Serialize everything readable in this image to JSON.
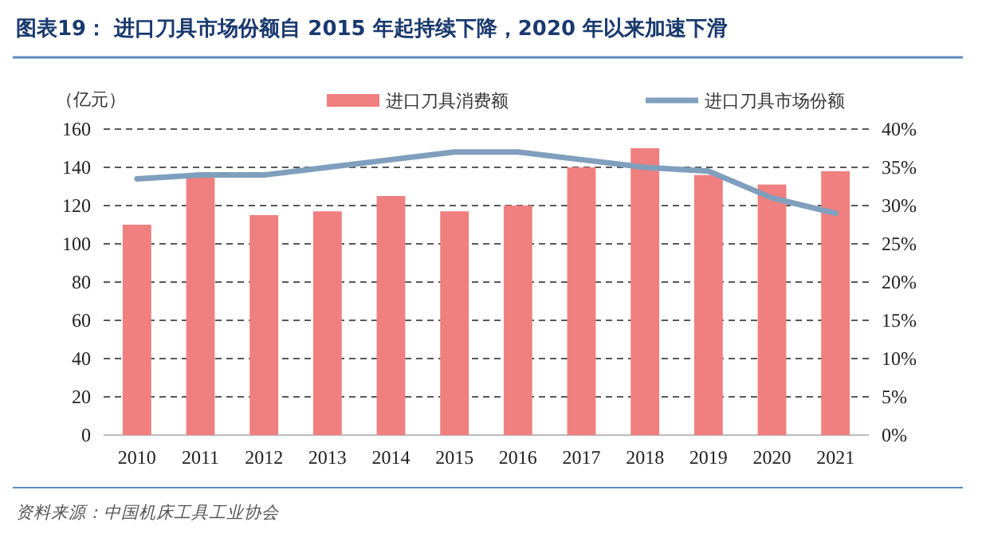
{
  "chart_data": {
    "type": "bar",
    "title": "图表19：  进口刀具市场份额自 2015 年起持续下降，2020 年以来加速下滑",
    "ylabel": "（亿元）",
    "annotations": [
      "资料来源：中国机床工具工业协会"
    ],
    "categories": [
      "2010",
      "2011",
      "2012",
      "2013",
      "2014",
      "2015",
      "2016",
      "2017",
      "2018",
      "2019",
      "2020",
      "2021"
    ],
    "series": [
      {
        "name": "进口刀具消费额",
        "color": "#f07f7f",
        "values": [
          110,
          135,
          115,
          117,
          125,
          117,
          120,
          140,
          150,
          136,
          131,
          138
        ]
      },
      {
        "name": "进口刀具市场份额",
        "type": "line",
        "axis": "y2",
        "color": "#7f9fbd",
        "values": [
          33.5,
          34,
          34,
          35,
          36,
          37,
          37,
          36,
          35,
          34.5,
          31,
          29
        ]
      }
    ],
    "ylim": [
      0,
      160
    ],
    "yticks": [
      0,
      20,
      40,
      60,
      80,
      100,
      120,
      140,
      160
    ],
    "y2lim": [
      0,
      40
    ],
    "y2ticks": [
      {
        "value": 0,
        "label": "0%"
      },
      {
        "value": 5,
        "label": "5%"
      },
      {
        "value": 10,
        "label": "10%"
      },
      {
        "value": 15,
        "label": "15%"
      },
      {
        "value": 20,
        "label": "20%"
      },
      {
        "value": 25,
        "label": "25%"
      },
      {
        "value": 30,
        "label": "30%"
      },
      {
        "value": 35,
        "label": "35%"
      },
      {
        "value": 40,
        "label": "40%"
      }
    ],
    "grid": "y",
    "legend": "top"
  }
}
